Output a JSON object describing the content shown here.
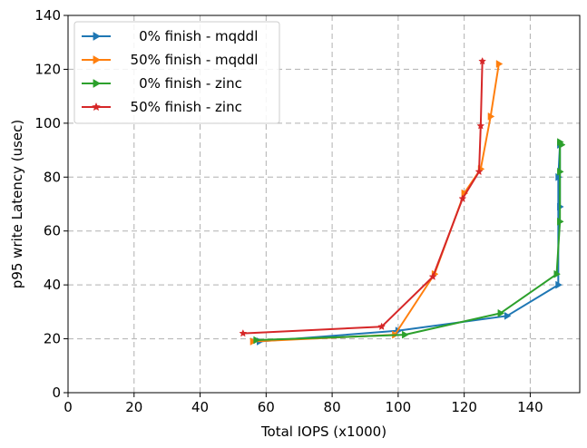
{
  "chart_data": {
    "type": "line",
    "title": "",
    "xlabel": "Total IOPS (x1000)",
    "ylabel": "p95 write Latency (usec)",
    "xlim": [
      0,
      155
    ],
    "ylim": [
      0,
      140
    ],
    "xticks": [
      0,
      20,
      40,
      60,
      80,
      100,
      120,
      140
    ],
    "yticks": [
      0,
      20,
      40,
      60,
      80,
      100,
      120,
      140
    ],
    "grid": true,
    "grid_style": "dashed",
    "legend_position": "top-left",
    "series": [
      {
        "name": "    0% finish - mqddl",
        "color": "#1f77b4",
        "marker": "triangle-right",
        "points": [
          [
            58,
            19
          ],
          [
            100,
            23
          ],
          [
            133,
            28.5
          ],
          [
            148.5,
            40
          ],
          [
            148.5,
            80
          ],
          [
            149,
            92
          ],
          [
            149,
            69
          ]
        ]
      },
      {
        "name": "  50% finish - mqddl",
        "color": "#ff7f0e",
        "marker": "triangle-right",
        "points": [
          [
            56,
            19
          ],
          [
            99,
            21.5
          ],
          [
            111,
            44
          ],
          [
            120,
            74
          ],
          [
            125,
            83
          ],
          [
            128,
            102.5
          ],
          [
            130.5,
            122
          ]
        ]
      },
      {
        "name": "    0% finish - zinc",
        "color": "#2ca02c",
        "marker": "triangle-right",
        "points": [
          [
            57,
            19.5
          ],
          [
            102,
            21.5
          ],
          [
            131,
            29.5
          ],
          [
            148,
            44
          ],
          [
            149,
            63.5
          ],
          [
            149,
            82
          ],
          [
            149,
            93
          ],
          [
            149.5,
            92
          ]
        ]
      },
      {
        "name": "  50% finish - zinc",
        "color": "#d62728",
        "marker": "star",
        "points": [
          [
            53,
            22
          ],
          [
            95,
            24.5
          ],
          [
            110.5,
            43
          ],
          [
            119.5,
            72
          ],
          [
            124.5,
            82
          ],
          [
            125,
            99
          ],
          [
            125.5,
            123
          ]
        ]
      }
    ]
  }
}
